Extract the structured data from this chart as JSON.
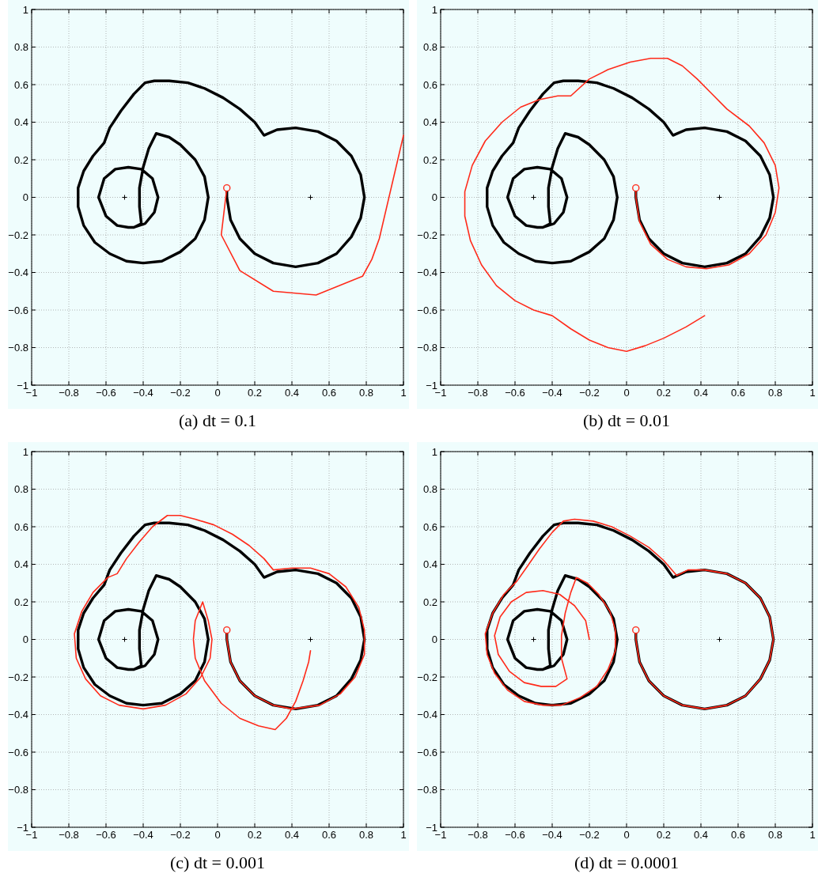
{
  "chart_data": [
    {
      "type": "line",
      "title": "(a) dt = 0.1",
      "xlim": [
        -1,
        1
      ],
      "ylim": [
        -1,
        1
      ],
      "xticks": [
        -1,
        -0.8,
        -0.6,
        -0.4,
        -0.2,
        0,
        0.2,
        0.4,
        0.6,
        0.8,
        1
      ],
      "yticks": [
        -1,
        -0.8,
        -0.6,
        -0.4,
        -0.2,
        0,
        0.2,
        0.4,
        0.6,
        0.8,
        1
      ],
      "grid": true,
      "series": [
        {
          "type": "line",
          "color": "#000000",
          "marker": "none",
          "x": [
            0.05,
            0.05,
            0.07,
            0.12,
            0.2,
            0.3,
            0.42,
            0.54,
            0.64,
            0.72,
            0.77,
            0.79,
            0.77,
            0.72,
            0.64,
            0.54,
            0.42,
            0.32,
            0.25,
            0.2,
            0.12,
            0.03,
            -0.07,
            -0.16,
            -0.26,
            -0.34,
            -0.39,
            -0.45,
            -0.52,
            -0.58,
            -0.61,
            -0.67,
            -0.72,
            -0.75,
            -0.75,
            -0.72,
            -0.66,
            -0.58,
            -0.49,
            -0.4,
            -0.3,
            -0.2,
            -0.12,
            -0.07,
            -0.05,
            -0.07,
            -0.12,
            -0.2,
            -0.26,
            -0.33,
            -0.37,
            -0.4,
            -0.42,
            -0.42,
            -0.41,
            -0.45,
            -0.48,
            -0.54,
            -0.6,
            -0.64,
            -0.61,
            -0.55,
            -0.48,
            -0.41,
            -0.35,
            -0.32,
            -0.34,
            -0.39,
            -0.45
          ],
          "values": [
            0.05,
            0,
            -0.12,
            -0.22,
            -0.3,
            -0.35,
            -0.37,
            -0.35,
            -0.3,
            -0.21,
            -0.11,
            0,
            0.12,
            0.22,
            0.3,
            0.35,
            0.37,
            0.36,
            0.33,
            0.4,
            0.47,
            0.53,
            0.58,
            0.61,
            0.62,
            0.62,
            0.61,
            0.55,
            0.46,
            0.37,
            0.29,
            0.22,
            0.14,
            0.05,
            -0.05,
            -0.15,
            -0.24,
            -0.3,
            -0.34,
            -0.35,
            -0.34,
            -0.29,
            -0.22,
            -0.12,
            0,
            0.11,
            0.2,
            0.28,
            0.32,
            0.34,
            0.26,
            0.16,
            0.05,
            -0.05,
            -0.14,
            -0.16,
            -0.16,
            -0.15,
            -0.1,
            0,
            0.1,
            0.15,
            0.16,
            0.15,
            0.1,
            0,
            -0.08,
            -0.14,
            -0.16
          ]
        },
        {
          "type": "line",
          "color": "#ff2a1a",
          "marker": "none",
          "x": [
            0.05,
            0.02,
            0.12,
            0.3,
            0.53,
            0.78,
            0.83,
            0.87,
            1
          ],
          "values": [
            0.05,
            -0.2,
            -0.39,
            -0.5,
            -0.52,
            -0.42,
            -0.33,
            -0.22,
            0.33
          ]
        },
        {
          "type": "scatter",
          "color": "#000000",
          "marker": "cross",
          "x": [
            -0.5,
            0.5
          ],
          "values": [
            0,
            0
          ]
        },
        {
          "type": "scatter",
          "color": "#ff2a1a",
          "marker": "circle",
          "x": [
            0.05
          ],
          "values": [
            0.05
          ]
        }
      ]
    },
    {
      "type": "line",
      "title": "(b) dt = 0.01",
      "xlim": [
        -1,
        1
      ],
      "ylim": [
        -1,
        1
      ],
      "xticks": [
        -1,
        -0.8,
        -0.6,
        -0.4,
        -0.2,
        0,
        0.2,
        0.4,
        0.6,
        0.8,
        1
      ],
      "yticks": [
        -1,
        -0.8,
        -0.6,
        -0.4,
        -0.2,
        0,
        0.2,
        0.4,
        0.6,
        0.8,
        1
      ],
      "grid": true,
      "series": [
        {
          "type": "line",
          "color": "#000000",
          "marker": "none",
          "x": [
            0.05,
            0.05,
            0.07,
            0.12,
            0.2,
            0.3,
            0.42,
            0.54,
            0.64,
            0.72,
            0.77,
            0.79,
            0.77,
            0.72,
            0.64,
            0.54,
            0.42,
            0.32,
            0.25,
            0.2,
            0.12,
            0.03,
            -0.07,
            -0.16,
            -0.26,
            -0.34,
            -0.39,
            -0.45,
            -0.52,
            -0.58,
            -0.61,
            -0.67,
            -0.72,
            -0.75,
            -0.75,
            -0.72,
            -0.66,
            -0.58,
            -0.49,
            -0.4,
            -0.3,
            -0.2,
            -0.12,
            -0.07,
            -0.05,
            -0.07,
            -0.12,
            -0.2,
            -0.26,
            -0.33,
            -0.37,
            -0.4,
            -0.42,
            -0.42,
            -0.41,
            -0.45,
            -0.48,
            -0.54,
            -0.6,
            -0.64,
            -0.61,
            -0.55,
            -0.48,
            -0.41,
            -0.35,
            -0.32,
            -0.34,
            -0.39,
            -0.45
          ],
          "values": [
            0.05,
            0,
            -0.12,
            -0.22,
            -0.3,
            -0.35,
            -0.37,
            -0.35,
            -0.3,
            -0.21,
            -0.11,
            0,
            0.12,
            0.22,
            0.3,
            0.35,
            0.37,
            0.36,
            0.33,
            0.4,
            0.47,
            0.53,
            0.58,
            0.61,
            0.62,
            0.62,
            0.61,
            0.55,
            0.46,
            0.37,
            0.29,
            0.22,
            0.14,
            0.05,
            -0.05,
            -0.15,
            -0.24,
            -0.3,
            -0.34,
            -0.35,
            -0.34,
            -0.29,
            -0.22,
            -0.12,
            0,
            0.11,
            0.2,
            0.28,
            0.32,
            0.34,
            0.26,
            0.16,
            0.05,
            -0.05,
            -0.14,
            -0.16,
            -0.16,
            -0.15,
            -0.1,
            0,
            0.1,
            0.15,
            0.16,
            0.15,
            0.1,
            0,
            -0.08,
            -0.14,
            -0.16
          ]
        },
        {
          "type": "line",
          "color": "#ff2a1a",
          "marker": "none",
          "x": [
            0.05,
            0.05,
            0.07,
            0.13,
            0.22,
            0.32,
            0.43,
            0.55,
            0.66,
            0.75,
            0.8,
            0.82,
            0.8,
            0.74,
            0.66,
            0.54,
            0.45,
            0.38,
            0.3,
            0.22,
            0.13,
            0.02,
            -0.1,
            -0.2,
            -0.3,
            -0.37,
            -0.47,
            -0.57,
            -0.67,
            -0.76,
            -0.83,
            -0.87,
            -0.87,
            -0.84,
            -0.78,
            -0.7,
            -0.6,
            -0.5,
            -0.4,
            -0.3,
            -0.2,
            -0.1,
            0,
            0.1,
            0.2,
            0.32,
            0.42
          ],
          "values": [
            0.05,
            0,
            -0.13,
            -0.25,
            -0.33,
            -0.37,
            -0.38,
            -0.36,
            -0.3,
            -0.2,
            -0.08,
            0.05,
            0.17,
            0.29,
            0.38,
            0.47,
            0.56,
            0.63,
            0.7,
            0.74,
            0.74,
            0.72,
            0.68,
            0.63,
            0.54,
            0.54,
            0.52,
            0.48,
            0.4,
            0.3,
            0.17,
            0.03,
            -0.1,
            -0.23,
            -0.36,
            -0.47,
            -0.55,
            -0.6,
            -0.63,
            -0.7,
            -0.76,
            -0.8,
            -0.82,
            -0.79,
            -0.75,
            -0.69,
            -0.63
          ]
        },
        {
          "type": "scatter",
          "color": "#000000",
          "marker": "cross",
          "x": [
            -0.5,
            0.5
          ],
          "values": [
            0,
            0
          ]
        },
        {
          "type": "scatter",
          "color": "#ff2a1a",
          "marker": "circle",
          "x": [
            0.05
          ],
          "values": [
            0.05
          ]
        }
      ]
    },
    {
      "type": "line",
      "title": "(c) dt = 0.001",
      "xlim": [
        -1,
        1
      ],
      "ylim": [
        -1,
        1
      ],
      "xticks": [
        -1,
        -0.8,
        -0.6,
        -0.4,
        -0.2,
        0,
        0.2,
        0.4,
        0.6,
        0.8,
        1
      ],
      "yticks": [
        -1,
        -0.8,
        -0.6,
        -0.4,
        -0.2,
        0,
        0.2,
        0.4,
        0.6,
        0.8,
        1
      ],
      "grid": true,
      "series": [
        {
          "type": "line",
          "color": "#000000",
          "marker": "none",
          "x": [
            0.05,
            0.05,
            0.07,
            0.12,
            0.2,
            0.3,
            0.42,
            0.54,
            0.64,
            0.72,
            0.77,
            0.79,
            0.77,
            0.72,
            0.64,
            0.54,
            0.42,
            0.32,
            0.25,
            0.2,
            0.12,
            0.03,
            -0.07,
            -0.16,
            -0.26,
            -0.34,
            -0.39,
            -0.45,
            -0.52,
            -0.58,
            -0.61,
            -0.67,
            -0.72,
            -0.75,
            -0.75,
            -0.72,
            -0.66,
            -0.58,
            -0.49,
            -0.4,
            -0.3,
            -0.2,
            -0.12,
            -0.07,
            -0.05,
            -0.07,
            -0.12,
            -0.2,
            -0.26,
            -0.33,
            -0.37,
            -0.4,
            -0.42,
            -0.42,
            -0.41,
            -0.45,
            -0.48,
            -0.54,
            -0.6,
            -0.64,
            -0.61,
            -0.55,
            -0.48,
            -0.41,
            -0.35,
            -0.32,
            -0.34,
            -0.39,
            -0.45
          ],
          "values": [
            0.05,
            0,
            -0.12,
            -0.22,
            -0.3,
            -0.35,
            -0.37,
            -0.35,
            -0.3,
            -0.21,
            -0.11,
            0,
            0.12,
            0.22,
            0.3,
            0.35,
            0.37,
            0.36,
            0.33,
            0.4,
            0.47,
            0.53,
            0.58,
            0.61,
            0.62,
            0.62,
            0.61,
            0.55,
            0.46,
            0.37,
            0.29,
            0.22,
            0.14,
            0.05,
            -0.05,
            -0.15,
            -0.24,
            -0.3,
            -0.34,
            -0.35,
            -0.34,
            -0.29,
            -0.22,
            -0.12,
            0,
            0.11,
            0.2,
            0.28,
            0.32,
            0.34,
            0.26,
            0.16,
            0.05,
            -0.05,
            -0.14,
            -0.16,
            -0.16,
            -0.15,
            -0.1,
            0,
            0.1,
            0.15,
            0.16,
            0.15,
            0.1,
            0,
            -0.08,
            -0.14,
            -0.16
          ]
        },
        {
          "type": "line",
          "color": "#ff2a1a",
          "marker": "none",
          "x": [
            0.05,
            0.05,
            0.07,
            0.12,
            0.2,
            0.3,
            0.4,
            0.55,
            0.66,
            0.74,
            0.79,
            0.79,
            0.76,
            0.69,
            0.6,
            0.5,
            0.4,
            0.3,
            0.25,
            0.17,
            0.08,
            -0.02,
            -0.12,
            -0.2,
            -0.27,
            -0.35,
            -0.42,
            -0.49,
            -0.54,
            -0.59,
            -0.67,
            -0.73,
            -0.77,
            -0.76,
            -0.71,
            -0.63,
            -0.53,
            -0.4,
            -0.28,
            -0.17,
            -0.09,
            -0.04,
            -0.03,
            -0.05,
            -0.08,
            -0.12,
            -0.13,
            -0.12,
            -0.07,
            0.02,
            0.12,
            0.22,
            0.31,
            0.37,
            0.42,
            0.46,
            0.49,
            0.5
          ],
          "values": [
            0.05,
            0,
            -0.12,
            -0.22,
            -0.3,
            -0.35,
            -0.37,
            -0.35,
            -0.29,
            -0.2,
            -0.08,
            0.05,
            0.17,
            0.28,
            0.35,
            0.38,
            0.38,
            0.37,
            0.43,
            0.5,
            0.56,
            0.61,
            0.64,
            0.66,
            0.66,
            0.6,
            0.52,
            0.43,
            0.35,
            0.33,
            0.25,
            0.15,
            0.03,
            -0.1,
            -0.21,
            -0.3,
            -0.35,
            -0.37,
            -0.35,
            -0.29,
            -0.2,
            -0.1,
            0,
            0.1,
            0.2,
            0.1,
            0,
            -0.1,
            -0.22,
            -0.34,
            -0.42,
            -0.46,
            -0.48,
            -0.42,
            -0.33,
            -0.22,
            -0.12,
            -0.06
          ]
        },
        {
          "type": "scatter",
          "color": "#000000",
          "marker": "cross",
          "x": [
            -0.5,
            0.5
          ],
          "values": [
            0,
            0
          ]
        },
        {
          "type": "scatter",
          "color": "#ff2a1a",
          "marker": "circle",
          "x": [
            0.05
          ],
          "values": [
            0.05
          ]
        }
      ]
    },
    {
      "type": "line",
      "title": "(d) dt = 0.0001",
      "xlim": [
        -1,
        1
      ],
      "ylim": [
        -1,
        1
      ],
      "xticks": [
        -1,
        -0.8,
        -0.6,
        -0.4,
        -0.2,
        0,
        0.2,
        0.4,
        0.6,
        0.8,
        1
      ],
      "yticks": [
        -1,
        -0.8,
        -0.6,
        -0.4,
        -0.2,
        0,
        0.2,
        0.4,
        0.6,
        0.8,
        1
      ],
      "grid": true,
      "series": [
        {
          "type": "line",
          "color": "#000000",
          "marker": "none",
          "x": [
            0.05,
            0.05,
            0.07,
            0.12,
            0.2,
            0.3,
            0.42,
            0.54,
            0.64,
            0.72,
            0.77,
            0.79,
            0.77,
            0.72,
            0.64,
            0.54,
            0.42,
            0.32,
            0.25,
            0.2,
            0.12,
            0.03,
            -0.07,
            -0.16,
            -0.26,
            -0.34,
            -0.39,
            -0.45,
            -0.52,
            -0.58,
            -0.61,
            -0.67,
            -0.72,
            -0.75,
            -0.75,
            -0.72,
            -0.66,
            -0.58,
            -0.49,
            -0.4,
            -0.3,
            -0.2,
            -0.12,
            -0.07,
            -0.05,
            -0.07,
            -0.12,
            -0.2,
            -0.26,
            -0.33,
            -0.37,
            -0.4,
            -0.42,
            -0.42,
            -0.41,
            -0.45,
            -0.48,
            -0.54,
            -0.6,
            -0.64,
            -0.61,
            -0.55,
            -0.48,
            -0.41,
            -0.35,
            -0.32,
            -0.34,
            -0.39,
            -0.45
          ],
          "values": [
            0.05,
            0,
            -0.12,
            -0.22,
            -0.3,
            -0.35,
            -0.37,
            -0.35,
            -0.3,
            -0.21,
            -0.11,
            0,
            0.12,
            0.22,
            0.3,
            0.35,
            0.37,
            0.36,
            0.33,
            0.4,
            0.47,
            0.53,
            0.58,
            0.61,
            0.62,
            0.62,
            0.61,
            0.55,
            0.46,
            0.37,
            0.29,
            0.22,
            0.14,
            0.05,
            -0.05,
            -0.15,
            -0.24,
            -0.3,
            -0.34,
            -0.35,
            -0.34,
            -0.29,
            -0.22,
            -0.12,
            0,
            0.11,
            0.2,
            0.28,
            0.32,
            0.34,
            0.26,
            0.16,
            0.05,
            -0.05,
            -0.14,
            -0.16,
            -0.16,
            -0.15,
            -0.1,
            0,
            0.1,
            0.15,
            0.16,
            0.15,
            0.1,
            0,
            -0.08,
            -0.14,
            -0.16
          ]
        },
        {
          "type": "line",
          "color": "#ff2a1a",
          "marker": "none",
          "x": [
            0.05,
            0.05,
            0.07,
            0.12,
            0.2,
            0.3,
            0.42,
            0.54,
            0.64,
            0.72,
            0.77,
            0.79,
            0.77,
            0.72,
            0.64,
            0.54,
            0.42,
            0.33,
            0.27,
            0.2,
            0.12,
            0.02,
            -0.08,
            -0.18,
            -0.28,
            -0.34,
            -0.4,
            -0.47,
            -0.54,
            -0.59,
            -0.66,
            -0.72,
            -0.76,
            -0.75,
            -0.71,
            -0.64,
            -0.55,
            -0.45,
            -0.35,
            -0.25,
            -0.16,
            -0.1,
            -0.06,
            -0.06,
            -0.09,
            -0.15,
            -0.21,
            -0.27,
            -0.3,
            -0.33,
            -0.35,
            -0.35,
            -0.32,
            -0.38,
            -0.46,
            -0.55,
            -0.63,
            -0.69,
            -0.71,
            -0.68,
            -0.62,
            -0.54,
            -0.45,
            -0.36,
            -0.28,
            -0.22,
            -0.2
          ],
          "values": [
            0.05,
            0,
            -0.12,
            -0.22,
            -0.3,
            -0.35,
            -0.37,
            -0.35,
            -0.3,
            -0.21,
            -0.11,
            0,
            0.12,
            0.22,
            0.3,
            0.35,
            0.37,
            0.37,
            0.34,
            0.42,
            0.49,
            0.55,
            0.6,
            0.63,
            0.64,
            0.63,
            0.57,
            0.48,
            0.38,
            0.31,
            0.24,
            0.14,
            0.03,
            -0.08,
            -0.18,
            -0.27,
            -0.33,
            -0.35,
            -0.35,
            -0.31,
            -0.25,
            -0.16,
            -0.06,
            0.05,
            0.15,
            0.24,
            0.3,
            0.33,
            0.25,
            0.14,
            0.02,
            -0.1,
            -0.21,
            -0.25,
            -0.25,
            -0.23,
            -0.17,
            -0.08,
            0.02,
            0.12,
            0.2,
            0.25,
            0.26,
            0.24,
            0.18,
            0.1,
            0
          ]
        },
        {
          "type": "scatter",
          "color": "#000000",
          "marker": "cross",
          "x": [
            -0.5,
            0.5
          ],
          "values": [
            0,
            0
          ]
        },
        {
          "type": "scatter",
          "color": "#ff2a1a",
          "marker": "circle",
          "x": [
            0.05
          ],
          "values": [
            0.05
          ]
        }
      ]
    }
  ]
}
